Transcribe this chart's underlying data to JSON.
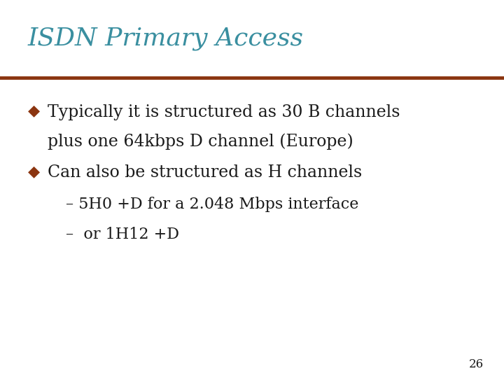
{
  "title": "ISDN Primary Access",
  "title_color": "#3A8FA0",
  "title_fontsize": 26,
  "line_color": "#8B3510",
  "background_color": "#FFFFFF",
  "bullet_color": "#8B3510",
  "body_color": "#1a1a1a",
  "bullet1_line1": "Typically it is structured as 30 B channels",
  "bullet1_line2": "plus one 64kbps D channel (Europe)",
  "bullet2": "Can also be structured as H channels",
  "sub1": "– 5H0 +D for a 2.048 Mbps interface",
  "sub2": "–  or 1H12 +D",
  "page_number": "26",
  "body_fontsize": 17,
  "sub_fontsize": 16
}
